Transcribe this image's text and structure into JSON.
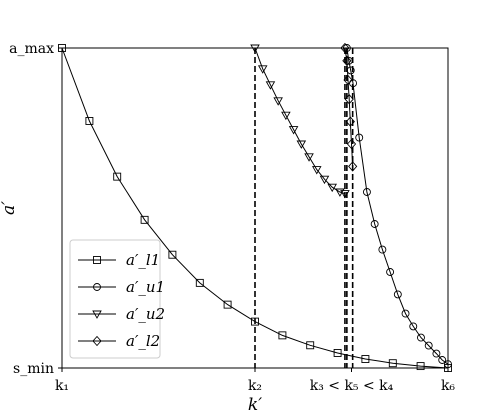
{
  "chart_data": {
    "type": "line",
    "xlabel": "k′",
    "ylabel": "a′",
    "x_ticks": [
      {
        "x": 0.0,
        "label": "k₁"
      },
      {
        "x": 0.5,
        "label": "k₂"
      },
      {
        "x": 0.75,
        "label": "k₃ < k₅ < k₄"
      },
      {
        "x": 1.0,
        "label": "k₆"
      }
    ],
    "y_ticks": [
      {
        "y": 0.0,
        "label": "s_min"
      },
      {
        "y": 1.0,
        "label": "a_max"
      }
    ],
    "xlim": [
      0,
      1
    ],
    "ylim": [
      0,
      1
    ],
    "grid": false,
    "legend_position": "lower-left",
    "vlines": [
      {
        "x": 0.5,
        "style": "dashed"
      },
      {
        "x": 0.733,
        "style": "dashed"
      },
      {
        "x": 0.738,
        "style": "dashed"
      },
      {
        "x": 0.753,
        "style": "dashed"
      }
    ],
    "series": [
      {
        "name": "a′_l1",
        "marker": "square",
        "x": [
          0.0,
          0.071,
          0.143,
          0.214,
          0.286,
          0.357,
          0.429,
          0.5,
          0.571,
          0.643,
          0.714,
          0.786,
          0.857,
          0.929,
          1.0
        ],
        "y": [
          1.0,
          0.772,
          0.598,
          0.463,
          0.354,
          0.266,
          0.198,
          0.145,
          0.102,
          0.071,
          0.047,
          0.028,
          0.015,
          0.006,
          0.0
        ]
      },
      {
        "name": "a′_u1",
        "marker": "circle",
        "x": [
          0.738,
          0.743,
          0.748,
          0.754,
          0.77,
          0.79,
          0.81,
          0.83,
          0.85,
          0.87,
          0.89,
          0.91,
          0.93,
          0.95,
          0.97,
          0.985,
          1.0
        ],
        "y": [
          1.0,
          0.96,
          0.93,
          0.89,
          0.72,
          0.55,
          0.45,
          0.37,
          0.3,
          0.23,
          0.17,
          0.13,
          0.095,
          0.07,
          0.045,
          0.025,
          0.012
        ]
      },
      {
        "name": "a′_u2",
        "marker": "triangle-down",
        "x": [
          0.5,
          0.52,
          0.54,
          0.56,
          0.58,
          0.6,
          0.62,
          0.64,
          0.66,
          0.68,
          0.7,
          0.72,
          0.733
        ],
        "y": [
          1.0,
          0.935,
          0.885,
          0.835,
          0.79,
          0.745,
          0.7,
          0.66,
          0.62,
          0.59,
          0.565,
          0.55,
          0.545
        ]
      },
      {
        "name": "a′_l2",
        "marker": "diamond",
        "x": [
          0.733,
          0.738,
          0.741,
          0.744,
          0.747,
          0.75,
          0.753
        ],
        "y": [
          1.0,
          0.96,
          0.9,
          0.84,
          0.77,
          0.7,
          0.63
        ]
      }
    ]
  }
}
